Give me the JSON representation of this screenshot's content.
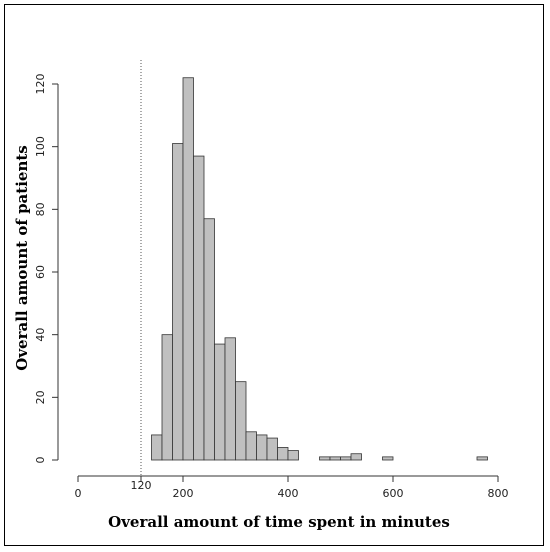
{
  "chart_data": {
    "type": "histogram",
    "xlabel": "Overall amount of time spent in minutes",
    "ylabel": "Overall amount of patients",
    "xlim": [
      0,
      800
    ],
    "ylim": [
      0,
      120
    ],
    "x_ticks": [
      0,
      200,
      400,
      600,
      800
    ],
    "y_ticks": [
      0,
      20,
      40,
      60,
      80,
      100,
      120
    ],
    "bin_width": 20,
    "bins": [
      {
        "start": 140,
        "end": 160,
        "count": 8
      },
      {
        "start": 160,
        "end": 180,
        "count": 40
      },
      {
        "start": 180,
        "end": 200,
        "count": 101
      },
      {
        "start": 200,
        "end": 220,
        "count": 122
      },
      {
        "start": 220,
        "end": 240,
        "count": 97
      },
      {
        "start": 240,
        "end": 260,
        "count": 77
      },
      {
        "start": 260,
        "end": 280,
        "count": 37
      },
      {
        "start": 280,
        "end": 300,
        "count": 39
      },
      {
        "start": 300,
        "end": 320,
        "count": 25
      },
      {
        "start": 320,
        "end": 340,
        "count": 9
      },
      {
        "start": 340,
        "end": 360,
        "count": 8
      },
      {
        "start": 360,
        "end": 380,
        "count": 7
      },
      {
        "start": 380,
        "end": 400,
        "count": 4
      },
      {
        "start": 400,
        "end": 420,
        "count": 3
      },
      {
        "start": 420,
        "end": 440,
        "count": 0
      },
      {
        "start": 440,
        "end": 460,
        "count": 0
      },
      {
        "start": 460,
        "end": 480,
        "count": 1
      },
      {
        "start": 480,
        "end": 500,
        "count": 1
      },
      {
        "start": 500,
        "end": 520,
        "count": 1
      },
      {
        "start": 520,
        "end": 540,
        "count": 2
      },
      {
        "start": 540,
        "end": 560,
        "count": 0
      },
      {
        "start": 560,
        "end": 580,
        "count": 0
      },
      {
        "start": 580,
        "end": 600,
        "count": 1
      },
      {
        "start": 600,
        "end": 620,
        "count": 0
      },
      {
        "start": 620,
        "end": 640,
        "count": 0
      },
      {
        "start": 640,
        "end": 660,
        "count": 0
      },
      {
        "start": 660,
        "end": 680,
        "count": 0
      },
      {
        "start": 680,
        "end": 700,
        "count": 0
      },
      {
        "start": 700,
        "end": 720,
        "count": 0
      },
      {
        "start": 720,
        "end": 740,
        "count": 0
      },
      {
        "start": 740,
        "end": 760,
        "count": 0
      },
      {
        "start": 760,
        "end": 780,
        "count": 1
      }
    ],
    "reference_line": {
      "x": 120,
      "label": "120",
      "style": "dotted"
    },
    "bar_color": "#c0c0c0",
    "bar_stroke": "#333333",
    "grid": false
  }
}
